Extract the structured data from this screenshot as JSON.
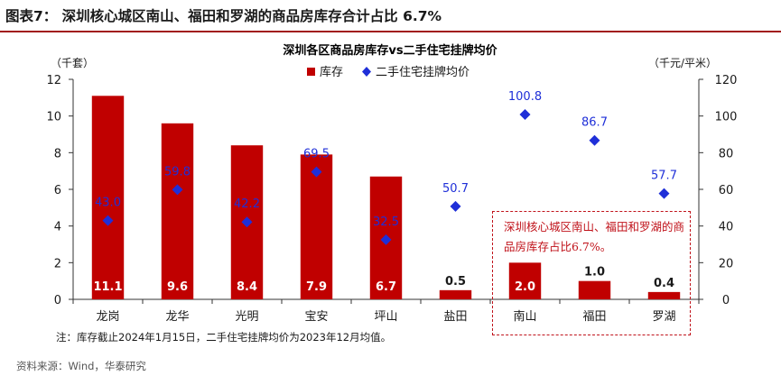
{
  "figure": {
    "title": "图表7：  深圳核心城区南山、福田和罗湖的商品房库存合计占比 6.7%",
    "note": "注：库存截止2024年1月15日，二手住宅挂牌均价为2023年12月均值。",
    "source": "资料来源：Wind，华泰研究"
  },
  "chart_data": {
    "type": "bar",
    "title": "深圳各区商品房库存vs二手住宅挂牌均价",
    "categories": [
      "龙岗",
      "龙华",
      "光明",
      "宝安",
      "坪山",
      "盐田",
      "南山",
      "福田",
      "罗湖"
    ],
    "series": [
      {
        "name": "库存",
        "type": "bar",
        "axis": "left",
        "color": "#c00000",
        "values": [
          11.1,
          9.6,
          8.4,
          7.9,
          6.7,
          0.5,
          2.0,
          1.0,
          0.4
        ],
        "labels": [
          "11.1",
          "9.6",
          "8.4",
          "7.9",
          "6.7",
          "0.5",
          "2.0",
          "1.0",
          "0.4"
        ]
      },
      {
        "name": "二手住宅挂牌均价",
        "type": "scatter",
        "axis": "right",
        "color": "#1f2fd8",
        "marker": "diamond",
        "values": [
          43.0,
          59.8,
          42.2,
          69.5,
          32.5,
          50.7,
          100.8,
          86.7,
          57.7
        ],
        "labels": [
          "43.0",
          "59.8",
          "42.2",
          "69.5",
          "32.5",
          "50.7",
          "100.8",
          "86.7",
          "57.7"
        ]
      }
    ],
    "y_left": {
      "unit": "（千套）",
      "ylim": [
        0,
        12
      ],
      "ticks": [
        "0",
        "2",
        "4",
        "6",
        "8",
        "10",
        "12"
      ]
    },
    "y_right": {
      "unit": "（千元/平米）",
      "ylim": [
        0,
        120
      ],
      "ticks": [
        "0",
        "20",
        "40",
        "60",
        "80",
        "100",
        "120"
      ]
    },
    "legend_position": "top-center",
    "grid": false,
    "annotation": "深圳核心城区南山、福田和罗湖的商品房库存占比6.7%。"
  }
}
